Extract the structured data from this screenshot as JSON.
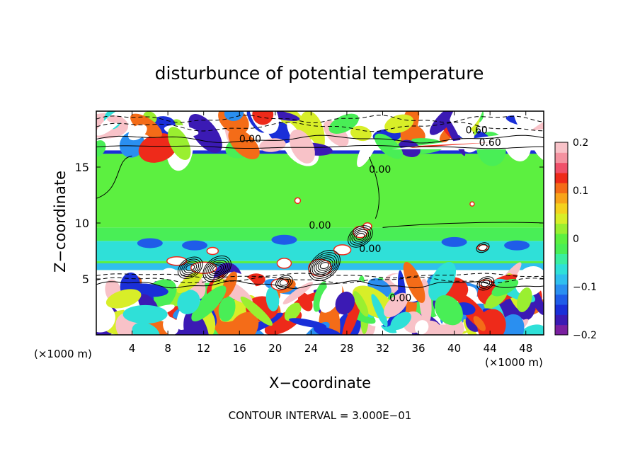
{
  "chart_data": {
    "type": "heatmap",
    "title": "disturbunce of potential temperature",
    "xlabel": "X−coordinate",
    "ylabel": "Z−coordinate",
    "x_unit_label": "(×1000 m)",
    "y_unit_label": "(×1000 m)",
    "footer": "CONTOUR INTERVAL = 3.000E−01",
    "xlim": [
      0,
      50
    ],
    "ylim": [
      0,
      20
    ],
    "x_ticks": [
      {
        "value": 4,
        "label": "4"
      },
      {
        "value": 8,
        "label": "8"
      },
      {
        "value": 12,
        "label": "12"
      },
      {
        "value": 16,
        "label": "16"
      },
      {
        "value": 20,
        "label": "20"
      },
      {
        "value": 24,
        "label": "24"
      },
      {
        "value": 28,
        "label": "28"
      },
      {
        "value": 32,
        "label": "32"
      },
      {
        "value": 36,
        "label": "36"
      },
      {
        "value": 40,
        "label": "40"
      },
      {
        "value": 44,
        "label": "44"
      },
      {
        "value": 48,
        "label": "48"
      }
    ],
    "y_ticks": [
      {
        "value": 5,
        "label": "5"
      },
      {
        "value": 10,
        "label": "10"
      },
      {
        "value": 15,
        "label": "15"
      }
    ],
    "colorbar": {
      "range": [
        -0.2,
        0.2
      ],
      "ticks": [
        {
          "value": 0.2,
          "label": "0.2"
        },
        {
          "value": 0.1,
          "label": "0.1"
        },
        {
          "value": 0,
          "label": "0"
        },
        {
          "value": -0.1,
          "label": "−0.1"
        },
        {
          "value": -0.2,
          "label": "−0.2"
        }
      ],
      "colors": [
        "#7a1fa0",
        "#3b1ab4",
        "#1a2fd8",
        "#1f5ce8",
        "#2a8ff0",
        "#2fbfee",
        "#2fe0d8",
        "#3aeea0",
        "#49ee56",
        "#5cf040",
        "#9aef30",
        "#d8ee28",
        "#f4d21e",
        "#f8a41a",
        "#f46c18",
        "#ee2a1a",
        "#f0506a",
        "#f492a0",
        "#f8c2c8"
      ]
    },
    "bands": [
      {
        "z_from": 0,
        "z_to": 5,
        "value": "mixed"
      },
      {
        "z_from": 5,
        "z_to": 5.8,
        "value": "white"
      },
      {
        "z_from": 5.8,
        "z_to": 6.6,
        "value": 0.0
      },
      {
        "z_from": 6.6,
        "z_to": 8.4,
        "value": -0.06
      },
      {
        "z_from": 8.4,
        "z_to": 9.6,
        "value": -0.02
      },
      {
        "z_from": 9.6,
        "z_to": 16.2,
        "value": 0.0
      },
      {
        "z_from": 16.2,
        "z_to": 16.5,
        "value": -0.15
      },
      {
        "z_from": 16.5,
        "z_to": 20,
        "value": "mixed"
      }
    ],
    "contour_labels": [
      {
        "x": 17.2,
        "z": 17.2,
        "text": "0.00"
      },
      {
        "x": 42.5,
        "z": 18.0,
        "text": "0.60"
      },
      {
        "x": 44.0,
        "z": 16.9,
        "text": "0.60"
      },
      {
        "x": 31.7,
        "z": 14.5,
        "text": "0.00"
      },
      {
        "x": 25.0,
        "z": 9.5,
        "text": "0.00"
      },
      {
        "x": 30.6,
        "z": 7.4,
        "text": "0.00"
      },
      {
        "x": 34.0,
        "z": 3.0,
        "text": "0.00"
      }
    ]
  }
}
